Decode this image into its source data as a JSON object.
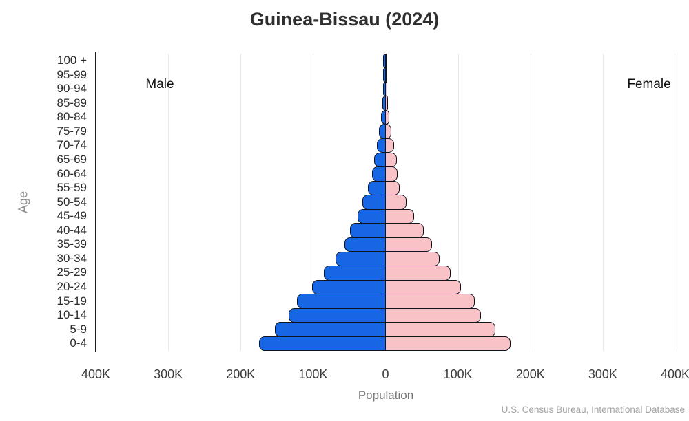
{
  "chart_data": {
    "type": "bar",
    "subtype": "population-pyramid",
    "title": "Guinea-Bissau (2024)",
    "xlabel": "Population",
    "ylabel": "Age",
    "unit": "thousands of people",
    "categories": [
      "100 +",
      "95-99",
      "90-94",
      "85-89",
      "80-84",
      "75-79",
      "70-74",
      "65-69",
      "60-64",
      "55-59",
      "50-54",
      "45-49",
      "40-44",
      "35-39",
      "30-34",
      "25-29",
      "20-24",
      "15-19",
      "10-14",
      "5-9",
      "0-4"
    ],
    "categories_order": "top-to-bottom",
    "series": [
      {
        "name": "Male",
        "side": "left",
        "color": "#1766e3",
        "values": [
          0.05,
          0.2,
          0.6,
          1.5,
          3.5,
          6,
          9,
          13,
          16,
          21,
          29,
          36,
          46,
          54,
          66,
          82,
          98,
          119,
          131,
          150,
          172
        ]
      },
      {
        "name": "Female",
        "side": "right",
        "color": "#f9c2c6",
        "values": [
          0.1,
          0.3,
          0.8,
          2,
          4,
          7,
          10,
          14,
          15,
          18,
          28,
          38,
          51,
          63,
          73,
          88,
          103,
          122,
          130,
          150,
          171
        ]
      }
    ],
    "xlim_k": [
      -400,
      400
    ],
    "tick_step_k": 100,
    "x_tick_labels": [
      "400K",
      "300K",
      "200K",
      "100K",
      "0",
      "100K",
      "200K",
      "300K",
      "400K"
    ],
    "grid": true,
    "legend_position": "inline-group-labels"
  },
  "source": "U.S. Census Bureau, International Database",
  "colors": {
    "male_bar": "#1766e3",
    "female_bar": "#f9c2c6",
    "bar_outline": "#10141f",
    "gridline": "#e9e9e9",
    "axis_line": "#1c1c1c",
    "title_text": "#2f2f2f",
    "tick_text": "#3b3b3b",
    "axis_title_text": "#757575",
    "source_text": "#a3a3a3"
  }
}
